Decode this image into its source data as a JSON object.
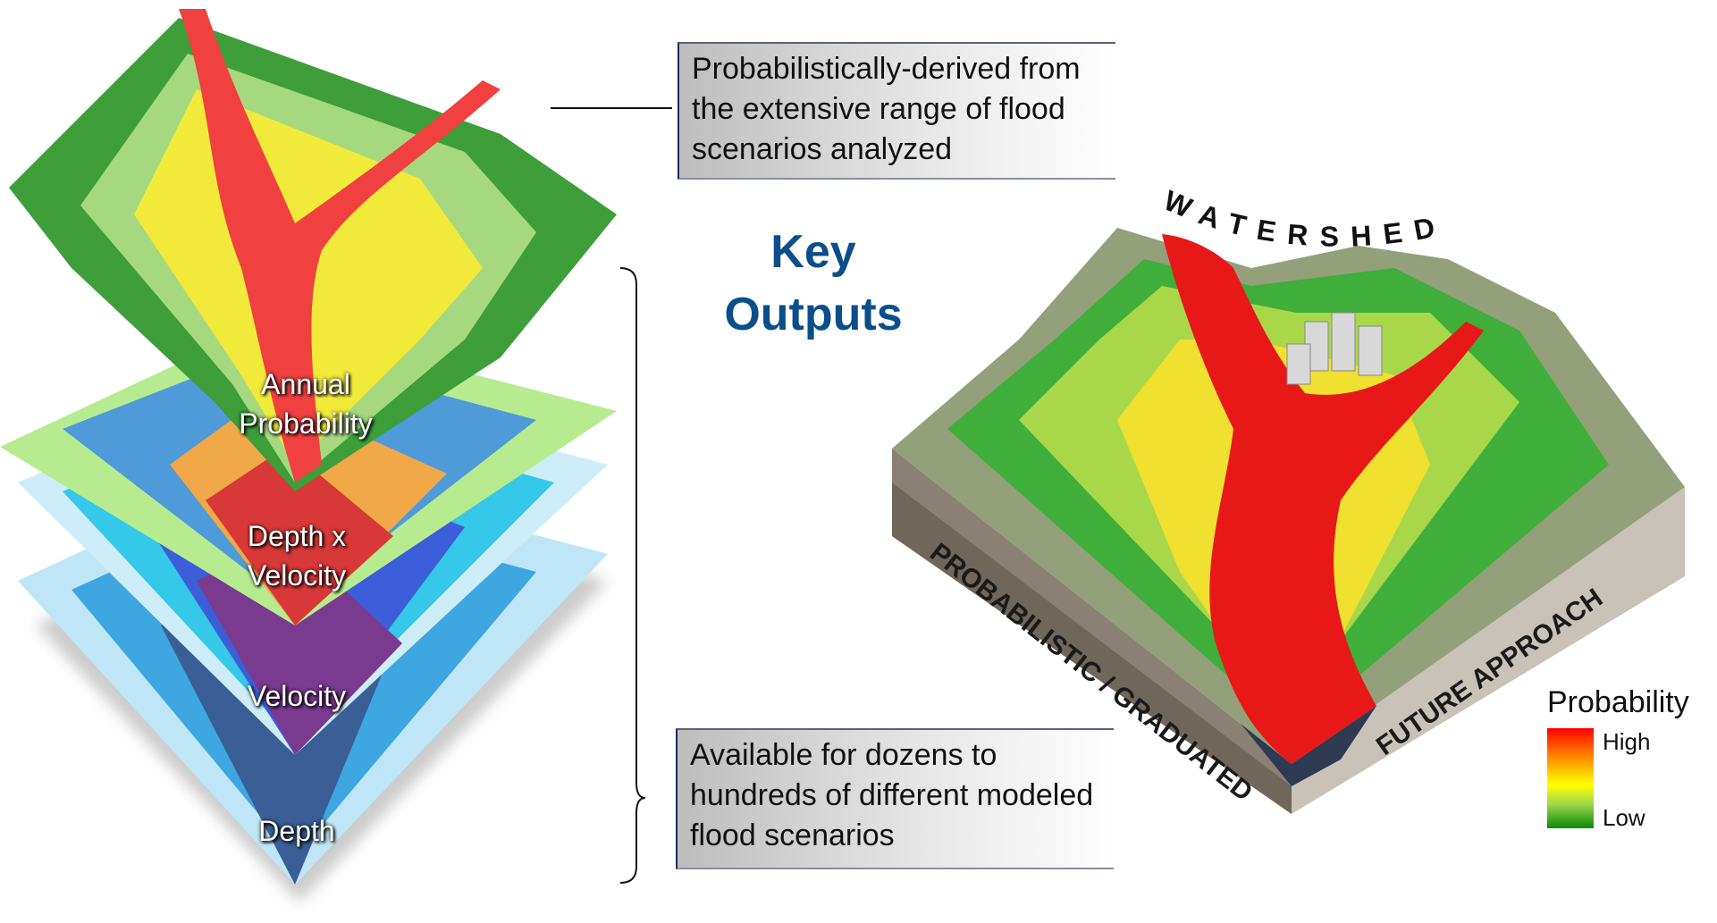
{
  "callouts": {
    "top": "Probabilistically-derived from the extensive range of flood scenarios analyzed",
    "bottom": "Available for dozens to hundreds of different modeled flood scenarios"
  },
  "heading": {
    "line1": "Key",
    "line2": "Outputs"
  },
  "layers": {
    "annual_probability": {
      "line1": "Annual",
      "line2": "Probability"
    },
    "depth_x_velocity": {
      "line1": "Depth x",
      "line2": "Velocity"
    },
    "velocity": "Velocity",
    "depth": "Depth"
  },
  "block_diagram": {
    "top_label": "WATERSHED",
    "left_face_label": "PROBABILISTIC / GRADUATED",
    "right_face_label": "FUTURE APPROACH"
  },
  "legend": {
    "title": "Probability",
    "high": "High",
    "low": "Low",
    "colors": [
      "#ff0000",
      "#ff6a00",
      "#ffff00",
      "#a6d84a",
      "#0a8a0a"
    ]
  },
  "colors": {
    "heading": "#0b4f8a",
    "callout_border": "#1f2a5e"
  }
}
